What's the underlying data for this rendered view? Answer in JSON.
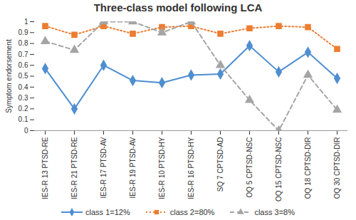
{
  "chart_data": {
    "type": "line",
    "title": "Three-class model following LCA",
    "y_label": "Symptom endorsement",
    "categories": [
      "IES-R 13 PTSD-RE",
      "IES-R 21 PTSD-RE",
      "IES-R 17 PTSD-AV",
      "IES-R 19 PTSD-AV",
      "IES-R 10 PTSD-HY",
      "IES-R 16 PTSD-HY",
      "SQ 7 CPTSD-AD",
      "OQ 5 CPTSD-NSC",
      "OQ 15 CPTSD-NSC",
      "OQ 18 CPTSD-DIR",
      "OQ 30 CPTSD-DIR"
    ],
    "series": [
      {
        "name": "class 1=12%",
        "color": "#4f8ed0",
        "marker": "diamond",
        "line_style": "solid",
        "values": [
          0.57,
          0.2,
          0.6,
          0.46,
          0.44,
          0.51,
          0.52,
          0.78,
          0.54,
          0.72,
          0.48
        ]
      },
      {
        "name": "class 2=80%",
        "color": "#ed7d31",
        "marker": "square",
        "line_style": "dotted",
        "values": [
          0.96,
          0.88,
          0.96,
          0.89,
          0.95,
          0.96,
          0.89,
          0.94,
          0.96,
          0.95,
          0.75
        ]
      },
      {
        "name": "class 3=8%",
        "color": "#a5a5a5",
        "marker": "triangle",
        "line_style": "dashed",
        "values": [
          0.82,
          0.74,
          1.0,
          1.0,
          0.9,
          1.0,
          0.6,
          0.28,
          0.0,
          0.51,
          0.19
        ]
      }
    ],
    "ylim": [
      0,
      1
    ],
    "yticks": [
      0,
      0.1,
      0.2,
      0.3,
      0.4,
      0.5,
      0.6,
      0.7,
      0.8,
      0.9,
      1
    ],
    "grid": false,
    "legend": "bottom"
  }
}
